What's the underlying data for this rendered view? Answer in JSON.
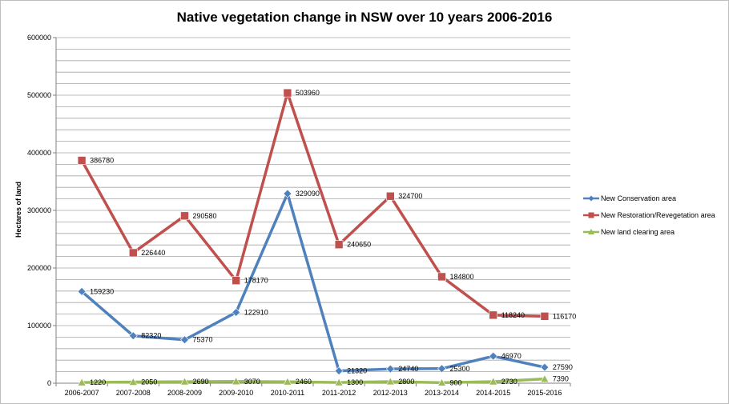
{
  "chart_data": {
    "type": "line",
    "title": "Native vegetation change in NSW over 10 years 2006-2016",
    "xlabel": "",
    "ylabel": "Hectares of land",
    "ylim": [
      0,
      600000
    ],
    "yticks": [
      0,
      100000,
      200000,
      300000,
      400000,
      500000,
      600000
    ],
    "ytick_labels": [
      "0",
      "100000",
      "200000",
      "300000",
      "400000",
      "500000",
      "600000"
    ],
    "grid": true,
    "legend_position": "right",
    "categories": [
      "2006-2007",
      "2007-2008",
      "2008-2009",
      "2009-2010",
      "2010-2011",
      "2011-2012",
      "2012-2013",
      "2013-2014",
      "2014-2015",
      "2015-2016"
    ],
    "series": [
      {
        "name": "New Conservation area",
        "color": "#4f81bd",
        "marker": "diamond",
        "values": [
          159230,
          82320,
          75370,
          122910,
          329090,
          21320,
          24740,
          25300,
          46970,
          27590
        ],
        "labels": [
          "159230",
          "82320",
          "75370",
          "122910",
          "329090",
          "21320",
          "24740",
          "25300",
          "46970",
          "27590"
        ]
      },
      {
        "name": "New Restoration/Revegetation area",
        "color": "#c0504d",
        "marker": "square",
        "values": [
          386780,
          226440,
          290580,
          178170,
          503960,
          240650,
          324700,
          184800,
          118240,
          116170
        ],
        "labels": [
          "386780",
          "226440",
          "290580",
          "178170",
          "503960",
          "240650",
          "324700",
          "184800",
          "118240",
          "116170"
        ]
      },
      {
        "name": "New land clearing area",
        "color": "#9bbb59",
        "marker": "triangle",
        "values": [
          1220,
          2050,
          2690,
          3070,
          2460,
          1300,
          2800,
          900,
          2730,
          7390
        ],
        "labels": [
          "1220",
          "2050",
          "2690",
          "3070",
          "2460",
          "1300",
          "2800",
          "900",
          "2730",
          "7390"
        ]
      }
    ]
  }
}
